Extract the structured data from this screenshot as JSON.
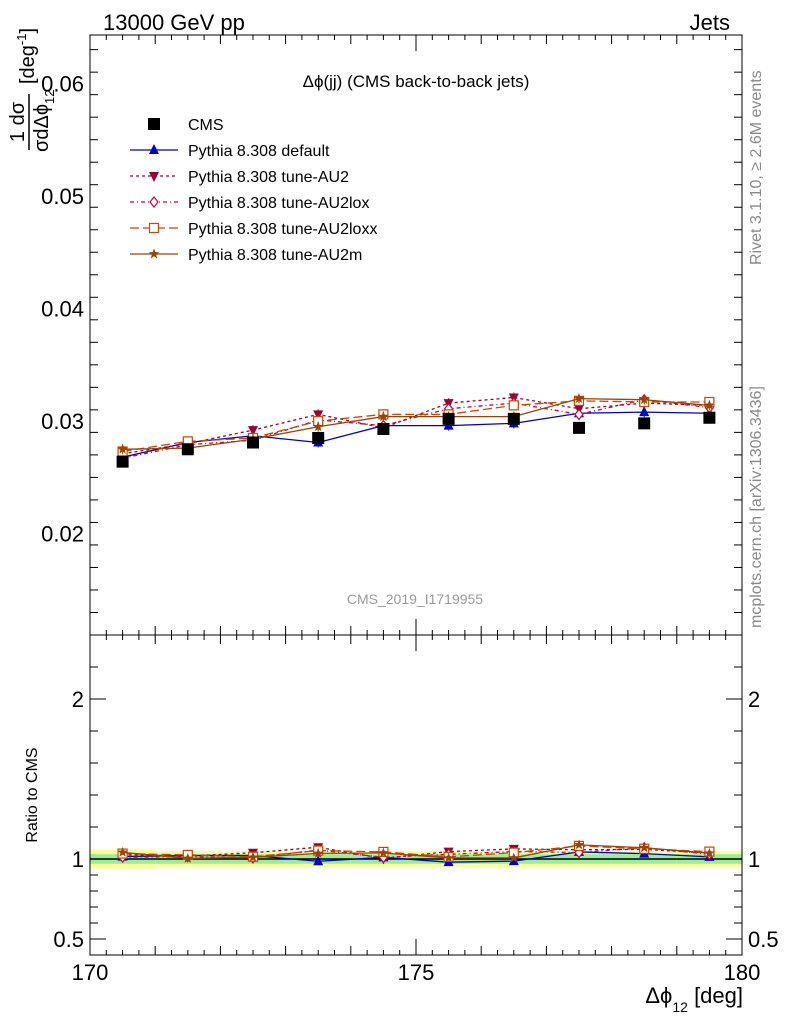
{
  "header": {
    "left": "13000 GeV pp",
    "right": "Jets"
  },
  "side_texts": {
    "rivet": "Rivet 3.1.10, ≥ 2.6M events",
    "mcplots": "mcplots.cern.ch [arXiv:1306.3436]"
  },
  "watermark": "CMS_2019_I1719955",
  "chart_data": {
    "type": "line",
    "title": "Δϕ(jj) (CMS back-to-back jets)",
    "xlabel": "Δϕ",
    "xlabel_sub": "12",
    "xlabel_unit": " [deg]",
    "ylabel_upper": {
      "numerator": "1 dσ",
      "denominator": "σdΔϕ",
      "denominator_sub": "12",
      "unit": " [deg",
      "unit_sup": "-1",
      "unit_end": "]"
    },
    "ylabel_lower": "Ratio to CMS",
    "xlim": [
      170,
      180
    ],
    "ylim_upper": [
      0.011,
      0.0643
    ],
    "ylim_lower": [
      0.4,
      2.4
    ],
    "x_ticks": [
      "170",
      "175",
      "180"
    ],
    "y_ticks_upper": [
      "0.02",
      "0.03",
      "0.04",
      "0.05",
      "0.06"
    ],
    "y_ticks_lower": [
      "0.5",
      "1",
      "2"
    ],
    "x": [
      170.5,
      171.5,
      172.5,
      173.5,
      174.5,
      175.5,
      176.5,
      177.5,
      178.5,
      179.5
    ],
    "data": {
      "name": "CMS",
      "values": [
        0.0264,
        0.0275,
        0.0281,
        0.0285,
        0.0293,
        0.0302,
        0.0302,
        0.0294,
        0.0298,
        0.0303
      ],
      "band_inner": [
        0.03,
        0.03,
        0.03,
        0.03,
        0.03,
        0.03,
        0.03,
        0.03,
        0.03,
        0.03
      ],
      "band_outer": [
        0.06,
        0.05,
        0.05,
        0.05,
        0.05,
        0.05,
        0.05,
        0.05,
        0.05,
        0.05
      ]
    },
    "series": [
      {
        "name": "Pythia 8.308 default",
        "color": "#0000cc",
        "dash": "",
        "marker": "triangle-up",
        "values": [
          0.0268,
          0.0281,
          0.0287,
          0.0281,
          0.0296,
          0.0296,
          0.0298,
          0.0307,
          0.0308,
          0.0307
        ]
      },
      {
        "name": "Pythia 8.308 tune-AU2",
        "color": "#990033",
        "dash": "3,3",
        "marker": "triangle-down",
        "values": [
          0.0271,
          0.028,
          0.0292,
          0.0306,
          0.0294,
          0.0316,
          0.0321,
          0.0311,
          0.0316,
          0.0314
        ]
      },
      {
        "name": "Pythia 8.308 tune-AU2lox",
        "color": "#cc0033",
        "dash": "4,3,1,3",
        "marker": "diamond-open",
        "values": [
          0.0267,
          0.0279,
          0.0283,
          0.0301,
          0.0296,
          0.0311,
          0.0316,
          0.0306,
          0.0319,
          0.0312
        ]
      },
      {
        "name": "Pythia 8.308 tune-AU2loxx",
        "color": "#cc4400",
        "dash": "9,4",
        "marker": "square-open",
        "values": [
          0.0273,
          0.0282,
          0.0285,
          0.03,
          0.0306,
          0.0306,
          0.0314,
          0.0318,
          0.0317,
          0.0317
        ]
      },
      {
        "name": "Pythia 8.308 tune-AU2m",
        "color": "#994400",
        "dash": "",
        "marker": "star",
        "values": [
          0.0275,
          0.0276,
          0.0284,
          0.0295,
          0.0304,
          0.0304,
          0.0304,
          0.032,
          0.0319,
          0.0314
        ]
      }
    ],
    "grid": false,
    "legend_position": "top-left"
  }
}
